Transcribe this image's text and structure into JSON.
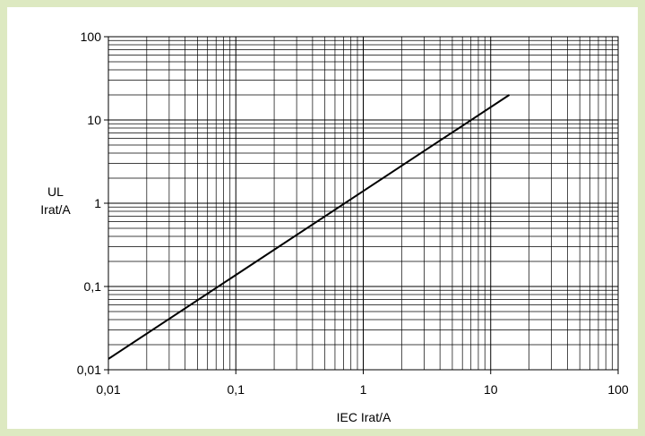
{
  "chart_data": {
    "type": "line",
    "title": "",
    "xlabel": "IEC  Irat/A",
    "ylabel_lines": [
      "UL",
      "Irat/A"
    ],
    "x_scale": "log",
    "y_scale": "log",
    "xlim": [
      0.01,
      100
    ],
    "ylim": [
      0.01,
      100
    ],
    "x_ticks": [
      {
        "value": 0.01,
        "label": "0,01"
      },
      {
        "value": 0.1,
        "label": "0,1"
      },
      {
        "value": 1,
        "label": "1"
      },
      {
        "value": 10,
        "label": "10"
      },
      {
        "value": 100,
        "label": "100"
      }
    ],
    "y_ticks": [
      {
        "value": 0.01,
        "label": "0,01"
      },
      {
        "value": 0.1,
        "label": "0,1"
      },
      {
        "value": 1,
        "label": "1"
      },
      {
        "value": 10,
        "label": "10"
      },
      {
        "value": 100,
        "label": "100"
      }
    ],
    "grid": true,
    "series": [
      {
        "x": [
          0.01,
          14
        ],
        "y": [
          0.0135,
          20
        ],
        "color": "#000000"
      }
    ]
  }
}
